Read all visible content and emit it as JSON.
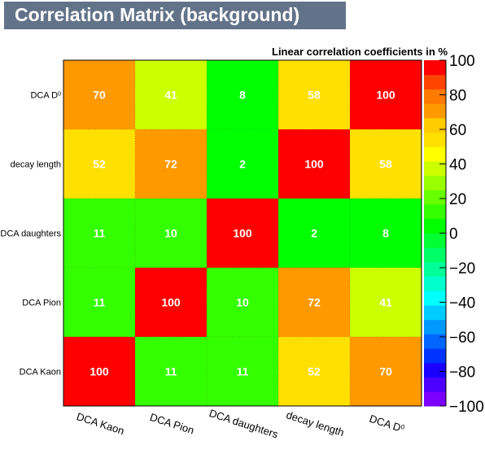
{
  "chart_data": {
    "type": "heatmap",
    "title": "Correlation Matrix (background)",
    "subtitle": "Linear correlation coefficients in %",
    "x_categories": [
      "DCA Kaon",
      "DCA Pion",
      "DCA daughters",
      "decay length",
      "DCA D0"
    ],
    "y_categories": [
      "DCA Kaon",
      "DCA Pion",
      "DCA daughters",
      "decay length",
      "DCA D0"
    ],
    "values": [
      [
        100,
        11,
        11,
        52,
        70
      ],
      [
        11,
        100,
        10,
        72,
        41
      ],
      [
        11,
        10,
        100,
        2,
        8
      ],
      [
        52,
        72,
        2,
        100,
        58
      ],
      [
        70,
        41,
        8,
        58,
        100
      ]
    ],
    "zlim": [
      -100,
      100
    ],
    "colorbar_ticks": [
      100,
      80,
      60,
      40,
      20,
      0,
      -20,
      -40,
      -60,
      -80,
      -100
    ],
    "palette": [
      "#7b00ff",
      "#4c00ff",
      "#1a00ff",
      "#0033ff",
      "#0066ff",
      "#0099ff",
      "#00ccff",
      "#00ffff",
      "#00ffcc",
      "#00ff99",
      "#00ff66",
      "#00ff33",
      "#00ff00",
      "#33ff00",
      "#66ff00",
      "#99ff00",
      "#ccff00",
      "#ffff00",
      "#ffe000",
      "#ffcc00",
      "#ff9900",
      "#ff7a00",
      "#ff4400",
      "#ff0000"
    ],
    "grid": false,
    "legend": "colorbar-right"
  }
}
